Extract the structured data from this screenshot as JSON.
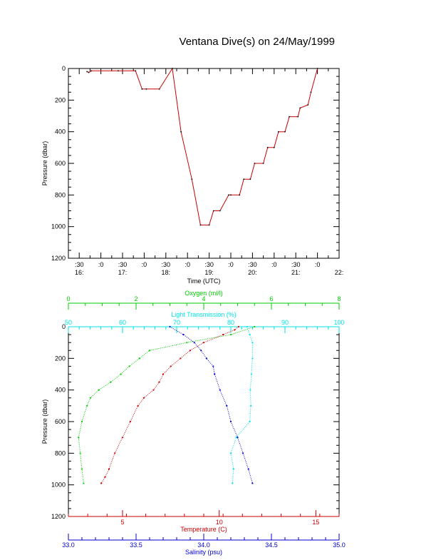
{
  "title": "Ventana Dive(s) on 24/May/1999",
  "colors": {
    "axis": "#000000",
    "depth": "#cc0000",
    "temperature": "#cc0000",
    "salinity": "#0000cc",
    "oxygen": "#00cc00",
    "transmission": "#00e5e5"
  },
  "chart_data": [
    {
      "type": "line",
      "xlabel": "Time (UTC)",
      "ylabel": "Pressure (dbar)",
      "xlim": [
        16.25,
        22.5
      ],
      "ylim": [
        1200,
        0
      ],
      "x_ticks_top": [
        ":30",
        ":0",
        ":30",
        ":0",
        ":30",
        ":0",
        ":30",
        ":0",
        ":30",
        ":0",
        ":30",
        ":0"
      ],
      "x_ticks_bottom": [
        "16:",
        "17:",
        "18:",
        "19:",
        "20:",
        "21:",
        "22:"
      ],
      "y_ticks": [
        "0",
        "200",
        "400",
        "600",
        "800",
        "1000",
        "1200"
      ],
      "series": [
        {
          "x": [
            16.68,
            16.72,
            16.78,
            17.4,
            17.8,
            17.95,
            18.05,
            18.35,
            18.65,
            18.85,
            19.1,
            19.3,
            19.5,
            19.6,
            19.75,
            19.95,
            20.0,
            20.2,
            20.3,
            20.45,
            20.55,
            20.75,
            20.85,
            21.0,
            21.1,
            21.25,
            21.35,
            21.55,
            21.6,
            21.78,
            21.85,
            22.0
          ],
          "y": [
            20,
            25,
            15,
            15,
            15,
            130,
            130,
            130,
            0,
            400,
            700,
            990,
            990,
            900,
            900,
            800,
            800,
            800,
            700,
            700,
            600,
            600,
            500,
            500,
            400,
            400,
            305,
            305,
            250,
            230,
            150,
            0
          ]
        }
      ]
    },
    {
      "type": "line",
      "ylabel": "Pressure (dbar)",
      "ylim": [
        1200,
        0
      ],
      "y_ticks": [
        "0",
        "200",
        "400",
        "600",
        "800",
        "1000",
        "1200"
      ],
      "axes": [
        {
          "label": "Oxygen (ml/l)",
          "position": "top",
          "range": [
            0,
            8
          ],
          "ticks": [
            "0",
            "2",
            "4",
            "6",
            "8"
          ]
        },
        {
          "label": "Light Transmission (%)",
          "position": "top",
          "range": [
            50,
            100
          ],
          "ticks": [
            "50",
            "60",
            "70",
            "80",
            "90",
            "100"
          ]
        },
        {
          "label": "Temperature (C)",
          "position": "bottom",
          "range": [
            2.2,
            16.2
          ],
          "ticks": [
            "5",
            "10",
            "15"
          ]
        },
        {
          "label": "Salinity (psu)",
          "position": "bottom",
          "range": [
            33.0,
            35.0
          ],
          "ticks": [
            "33.0",
            "33.5",
            "34.0",
            "34.5",
            "35.0"
          ]
        }
      ],
      "series": [
        {
          "axis": "Temperature (C)",
          "pressure": [
            0,
            20,
            50,
            100,
            150,
            200,
            250,
            300,
            350,
            400,
            450,
            500,
            600,
            700,
            800,
            900,
            950,
            990
          ],
          "values": [
            11.0,
            10.8,
            10.2,
            9.2,
            8.5,
            8.0,
            7.5,
            7.1,
            6.9,
            6.6,
            6.1,
            5.8,
            5.4,
            5.0,
            4.6,
            4.3,
            4.1,
            3.9
          ]
        },
        {
          "axis": "Salinity (psu)",
          "pressure": [
            0,
            50,
            100,
            150,
            200,
            250,
            300,
            400,
            500,
            600,
            700,
            800,
            900,
            990
          ],
          "values": [
            33.75,
            33.85,
            33.93,
            33.98,
            34.02,
            34.07,
            34.08,
            34.12,
            34.17,
            34.2,
            34.25,
            34.29,
            34.33,
            34.36
          ]
        },
        {
          "axis": "Oxygen (ml/l)",
          "pressure": [
            0,
            50,
            100,
            150,
            200,
            250,
            300,
            350,
            400,
            450,
            500,
            600,
            700,
            800,
            900,
            990
          ],
          "values": [
            5.5,
            4.8,
            3.5,
            2.4,
            2.1,
            1.8,
            1.55,
            1.25,
            0.9,
            0.65,
            0.55,
            0.4,
            0.3,
            0.35,
            0.4,
            0.45
          ]
        },
        {
          "axis": "Light Transmission (%)",
          "pressure": [
            0,
            50,
            100,
            200,
            300,
            400,
            500,
            600,
            700,
            800,
            900,
            990
          ],
          "values": [
            83,
            83.5,
            84,
            84,
            83.8,
            83.6,
            83.7,
            83.5,
            81,
            80,
            80.5,
            80.3
          ]
        }
      ]
    }
  ]
}
